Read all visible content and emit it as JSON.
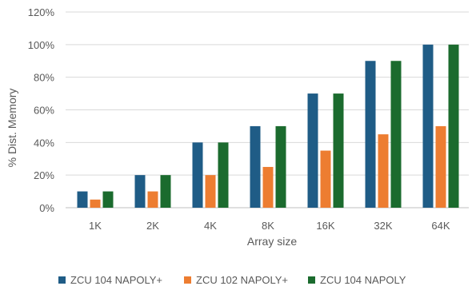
{
  "chart_data": {
    "type": "bar",
    "title": "",
    "xlabel": "Array size",
    "ylabel": "% Dist. Memory",
    "categories": [
      "1K",
      "2K",
      "4K",
      "8K",
      "16K",
      "32K",
      "64K"
    ],
    "ylim": [
      0,
      120
    ],
    "yticks": [
      0,
      20,
      40,
      60,
      80,
      100,
      120
    ],
    "ytick_labels": [
      "0%",
      "20%",
      "40%",
      "60%",
      "80%",
      "100%",
      "120%"
    ],
    "grid": true,
    "legend_position": "bottom",
    "series": [
      {
        "name": "ZCU 104 NAPOLY+",
        "color": "#1f5c86",
        "values": [
          10,
          20,
          40,
          50,
          70,
          90,
          100
        ]
      },
      {
        "name": "ZCU 102 NAPOLY+",
        "color": "#ed7d31",
        "values": [
          5,
          10,
          20,
          25,
          35,
          45,
          50
        ]
      },
      {
        "name": "ZCU 104 NAPOLY",
        "color": "#1b6b2e",
        "values": [
          10,
          20,
          40,
          50,
          70,
          90,
          100
        ]
      }
    ]
  }
}
